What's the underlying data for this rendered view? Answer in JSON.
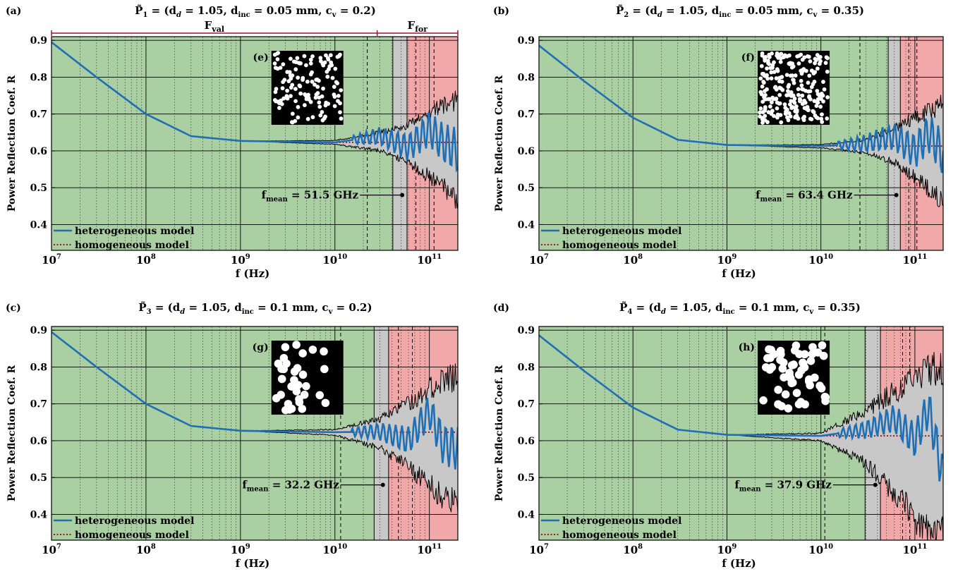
{
  "figure": {
    "colors": {
      "val_region": "#a9cfa2",
      "for_region": "#f0a8a8",
      "gray_band": "#c8c8c8",
      "envelope": "#c8c8c8",
      "heterogeneous": "#1f6fb4",
      "homogeneous": "#a0142a",
      "range_bar": "#a0142a"
    },
    "range_labels": {
      "val": "F",
      "val_sub": "val",
      "for": "F",
      "for_sub": "for"
    },
    "legend": {
      "heterogeneous": "heterogeneous model",
      "homogeneous": "homogeneous model"
    }
  },
  "chart_data": [
    {
      "type": "line",
      "panel": "(a)",
      "inset_label": "(e)",
      "title": {
        "sym": "P̃",
        "idx": "1",
        "body": " = (d",
        "dsub": "d",
        "t1": " = 1.05,  d",
        "isub": "inc",
        "t2": " = 0.05 mm,  c",
        "csub": "v",
        "t3": " = 0.2)"
      },
      "xlabel": "f (Hz)",
      "ylabel": "Power Reflection Coef. R",
      "x_scale": "log",
      "xlim": [
        10000000.0,
        200000000000.0
      ],
      "ylim": [
        0.33,
        0.91
      ],
      "x_ticks": [
        "10^7",
        "10^8",
        "10^9",
        "10^10",
        "10^11"
      ],
      "y_ticks": [
        0.4,
        0.5,
        0.6,
        0.7,
        0.8,
        0.9
      ],
      "grid": true,
      "legend_position": "bottom-left",
      "f_mean_label": "f",
      "f_mean_sub": "mean",
      "f_mean_value": " = 51.5 GHz",
      "f_mean_hz": 51500000000.0,
      "validation_range_hz": [
        10000000.0,
        58000000000.0
      ],
      "forecast_range_hz": [
        58000000000.0,
        200000000000.0
      ],
      "gray_band_hz": [
        41000000000.0,
        58000000000.0
      ],
      "dashed_lines_hz": [
        22000000000.0,
        72000000000.0,
        112000000000.0
      ],
      "range_bar_split_hz": 28000000000.0,
      "show_range_bar": true,
      "inset": {
        "circles": 130,
        "radius": 2.9,
        "seed": 11
      },
      "series": [
        {
          "name": "homogeneous model",
          "x": [
            10000000.0,
            30000000.0,
            100000000.0,
            300000000.0,
            1000000000.0,
            10000000000.0,
            200000000000.0
          ],
          "y": [
            0.895,
            0.8,
            0.7,
            0.64,
            0.627,
            0.623,
            0.623
          ]
        },
        {
          "name": "heterogeneous model",
          "x": [
            10000000.0,
            30000000.0,
            100000000.0,
            300000000.0,
            1000000000.0,
            10000000000.0,
            30000000000.0,
            60000000000.0,
            100000000000.0,
            140000000000.0,
            200000000000.0
          ],
          "y": [
            0.895,
            0.8,
            0.7,
            0.64,
            0.627,
            0.623,
            0.64,
            0.61,
            0.66,
            0.62,
            0.6
          ]
        }
      ],
      "envelope": {
        "x": [
          1000000000.0,
          10000000000.0,
          30000000000.0,
          60000000000.0,
          100000000000.0,
          200000000000.0
        ],
        "upper": [
          0.627,
          0.628,
          0.65,
          0.67,
          0.7,
          0.74
        ],
        "lower": [
          0.627,
          0.618,
          0.6,
          0.57,
          0.53,
          0.47
        ]
      }
    },
    {
      "type": "line",
      "panel": "(b)",
      "inset_label": "(f)",
      "title": {
        "sym": "P̃",
        "idx": "2",
        "body": " = (d",
        "dsub": "d",
        "t1": " = 1.05,  d",
        "isub": "inc",
        "t2": " = 0.05 mm,  c",
        "csub": "v",
        "t3": " = 0.35)"
      },
      "xlabel": "f (Hz)",
      "ylabel": "Power Reflection Coef. R",
      "x_scale": "log",
      "xlim": [
        10000000.0,
        200000000000.0
      ],
      "ylim": [
        0.33,
        0.91
      ],
      "x_ticks": [
        "10^7",
        "10^8",
        "10^9",
        "10^10",
        "10^11"
      ],
      "y_ticks": [
        0.4,
        0.5,
        0.6,
        0.7,
        0.8,
        0.9
      ],
      "grid": true,
      "legend_position": "bottom-left",
      "f_mean_label": "f",
      "f_mean_sub": "mean",
      "f_mean_value": " = 63.4 GHz",
      "f_mean_hz": 63400000000.0,
      "validation_range_hz": [
        10000000.0,
        70000000000.0
      ],
      "forecast_range_hz": [
        70000000000.0,
        200000000000.0
      ],
      "gray_band_hz": [
        52000000000.0,
        70000000000.0
      ],
      "dashed_lines_hz": [
        26000000000.0,
        86000000000.0,
        105000000000.0
      ],
      "show_range_bar": false,
      "inset": {
        "circles": 240,
        "radius": 2.9,
        "seed": 23
      },
      "series": [
        {
          "name": "homogeneous model",
          "x": [
            10000000.0,
            30000000.0,
            100000000.0,
            300000000.0,
            1000000000.0,
            10000000000.0,
            200000000000.0
          ],
          "y": [
            0.886,
            0.79,
            0.69,
            0.63,
            0.616,
            0.613,
            0.613
          ]
        },
        {
          "name": "heterogeneous model",
          "x": [
            10000000.0,
            30000000.0,
            100000000.0,
            300000000.0,
            1000000000.0,
            10000000000.0,
            30000000000.0,
            60000000000.0,
            100000000000.0,
            140000000000.0,
            200000000000.0
          ],
          "y": [
            0.886,
            0.79,
            0.69,
            0.63,
            0.616,
            0.613,
            0.62,
            0.64,
            0.6,
            0.65,
            0.59
          ]
        }
      ],
      "envelope": {
        "x": [
          1000000000.0,
          10000000000.0,
          30000000000.0,
          60000000000.0,
          100000000000.0,
          200000000000.0
        ],
        "upper": [
          0.616,
          0.617,
          0.63,
          0.66,
          0.69,
          0.73
        ],
        "lower": [
          0.616,
          0.608,
          0.595,
          0.57,
          0.53,
          0.46
        ]
      }
    },
    {
      "type": "line",
      "panel": "(c)",
      "inset_label": "(g)",
      "title": {
        "sym": "P̃",
        "idx": "3",
        "body": " = (d",
        "dsub": "d",
        "t1": " = 1.05,  d",
        "isub": "inc",
        "t2": " = 0.1 mm,  c",
        "csub": "v",
        "t3": " = 0.2)"
      },
      "xlabel": "f (Hz)",
      "ylabel": "Power Reflection Coef. R",
      "x_scale": "log",
      "xlim": [
        10000000.0,
        200000000000.0
      ],
      "ylim": [
        0.33,
        0.91
      ],
      "x_ticks": [
        "10^7",
        "10^8",
        "10^9",
        "10^10",
        "10^11"
      ],
      "y_ticks": [
        0.4,
        0.5,
        0.6,
        0.7,
        0.8,
        0.9
      ],
      "grid": true,
      "legend_position": "bottom-left",
      "f_mean_label": "f",
      "f_mean_sub": "mean",
      "f_mean_value": " = 32.2 GHz",
      "f_mean_hz": 32200000000.0,
      "validation_range_hz": [
        10000000.0,
        37000000000.0
      ],
      "forecast_range_hz": [
        37000000000.0,
        200000000000.0
      ],
      "gray_band_hz": [
        26000000000.0,
        37000000000.0
      ],
      "dashed_lines_hz": [
        11500000000.0,
        47000000000.0,
        66000000000.0
      ],
      "show_range_bar": false,
      "inset": {
        "circles": 34,
        "radius": 5.8,
        "seed": 37
      },
      "series": [
        {
          "name": "homogeneous model",
          "x": [
            10000000.0,
            30000000.0,
            100000000.0,
            300000000.0,
            1000000000.0,
            10000000000.0,
            200000000000.0
          ],
          "y": [
            0.895,
            0.8,
            0.7,
            0.64,
            0.627,
            0.623,
            0.623
          ]
        },
        {
          "name": "heterogeneous model",
          "x": [
            10000000.0,
            30000000.0,
            100000000.0,
            300000000.0,
            1000000000.0,
            10000000000.0,
            30000000000.0,
            60000000000.0,
            100000000000.0,
            140000000000.0,
            200000000000.0
          ],
          "y": [
            0.895,
            0.8,
            0.7,
            0.64,
            0.627,
            0.623,
            0.625,
            0.6,
            0.68,
            0.59,
            0.58
          ]
        }
      ],
      "envelope": {
        "x": [
          1000000000.0,
          10000000000.0,
          30000000000.0,
          60000000000.0,
          100000000000.0,
          200000000000.0
        ],
        "upper": [
          0.627,
          0.63,
          0.66,
          0.7,
          0.74,
          0.78
        ],
        "lower": [
          0.627,
          0.615,
          0.58,
          0.53,
          0.48,
          0.42
        ]
      }
    },
    {
      "type": "line",
      "panel": "(d)",
      "inset_label": "(h)",
      "title": {
        "sym": "P̃",
        "idx": "4",
        "body": " = (d",
        "dsub": "d",
        "t1": " = 1.05,  d",
        "isub": "inc",
        "t2": " = 0.1 mm,  c",
        "csub": "v",
        "t3": " = 0.35)"
      },
      "xlabel": "f (Hz)",
      "ylabel": "Power Reflection Coef. R",
      "x_scale": "log",
      "xlim": [
        10000000.0,
        200000000000.0
      ],
      "ylim": [
        0.33,
        0.91
      ],
      "x_ticks": [
        "10^7",
        "10^8",
        "10^9",
        "10^10",
        "10^11"
      ],
      "y_ticks": [
        0.4,
        0.5,
        0.6,
        0.7,
        0.8,
        0.9
      ],
      "grid": true,
      "legend_position": "bottom-left",
      "f_mean_label": "f",
      "f_mean_sub": "mean",
      "f_mean_value": " = 37.9 GHz",
      "f_mean_hz": 37900000000.0,
      "validation_range_hz": [
        10000000.0,
        43000000000.0
      ],
      "forecast_range_hz": [
        43000000000.0,
        200000000000.0
      ],
      "gray_band_hz": [
        29500000000.0,
        43000000000.0
      ],
      "dashed_lines_hz": [
        11000000000.0,
        74000000000.0,
        88000000000.0
      ],
      "show_range_bar": false,
      "inset": {
        "circles": 55,
        "radius": 5.8,
        "seed": 51
      },
      "series": [
        {
          "name": "homogeneous model",
          "x": [
            10000000.0,
            30000000.0,
            100000000.0,
            300000000.0,
            1000000000.0,
            10000000000.0,
            200000000000.0
          ],
          "y": [
            0.886,
            0.79,
            0.69,
            0.63,
            0.616,
            0.613,
            0.613
          ]
        },
        {
          "name": "heterogeneous model",
          "x": [
            10000000.0,
            30000000.0,
            100000000.0,
            300000000.0,
            1000000000.0,
            10000000000.0,
            30000000000.0,
            60000000000.0,
            100000000000.0,
            140000000000.0,
            200000000000.0
          ],
          "y": [
            0.886,
            0.79,
            0.69,
            0.63,
            0.616,
            0.613,
            0.63,
            0.66,
            0.6,
            0.69,
            0.5
          ]
        }
      ],
      "envelope": {
        "x": [
          1000000000.0,
          10000000000.0,
          30000000000.0,
          60000000000.0,
          100000000000.0,
          200000000000.0
        ],
        "upper": [
          0.616,
          0.62,
          0.68,
          0.73,
          0.77,
          0.8
        ],
        "lower": [
          0.616,
          0.6,
          0.54,
          0.46,
          0.39,
          0.34
        ]
      }
    }
  ]
}
